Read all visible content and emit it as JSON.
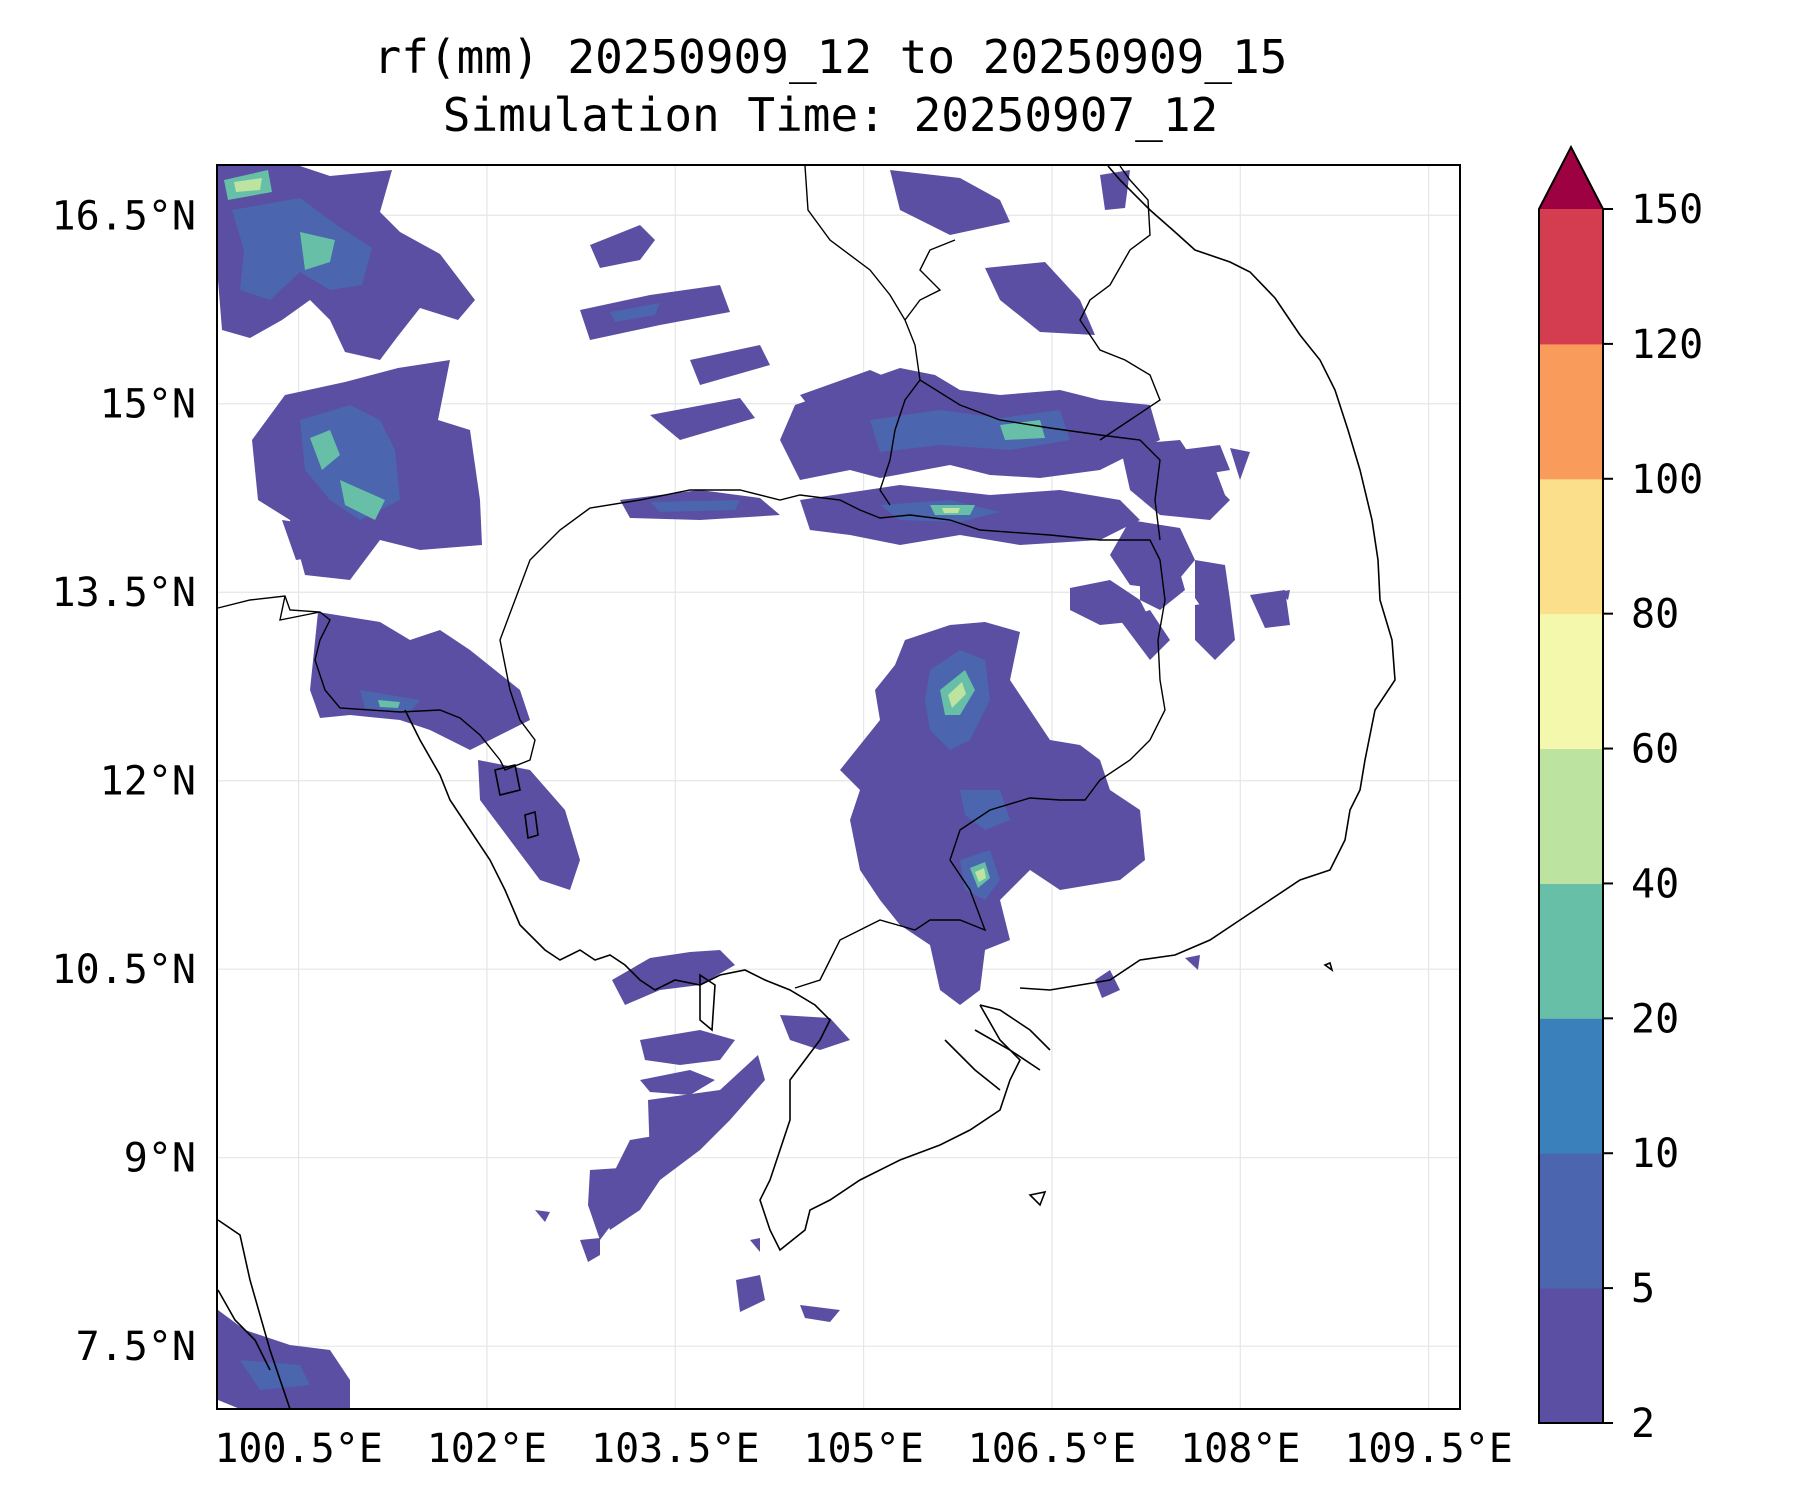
{
  "title": {
    "line1": "rf(mm) 20250909_12 to 20250909_15",
    "line2": "Simulation Time: 20250907_12"
  },
  "map": {
    "lon_range": [
      99.85,
      109.75
    ],
    "lat_range": [
      7.0,
      16.9
    ],
    "lon_ticks": [
      100.5,
      102,
      103.5,
      105,
      106.5,
      108,
      109.5
    ],
    "lon_tick_labels": [
      "100.5°E",
      "102°E",
      "103.5°E",
      "105°E",
      "106.5°E",
      "108°E",
      "109.5°E"
    ],
    "lat_ticks": [
      16.5,
      15,
      13.5,
      12,
      10.5,
      9,
      7.5
    ],
    "lat_tick_labels": [
      "16.5°N",
      "15°N",
      "13.5°N",
      "12°N",
      "10.5°N",
      "9°N",
      "7.5°N"
    ],
    "gridlines": true
  },
  "colorbar": {
    "levels": [
      2,
      5,
      10,
      20,
      40,
      60,
      80,
      100,
      120,
      150
    ],
    "level_labels": [
      "2",
      "5",
      "10",
      "20",
      "40",
      "60",
      "80",
      "100",
      "120",
      "150"
    ],
    "colors": [
      "#5a4fa3",
      "#4b65ae",
      "#3a80bb",
      "#66bfa6",
      "#bde3a1",
      "#f3f8ad",
      "#fbdf8a",
      "#f89b5b",
      "#d43d4f"
    ],
    "extend_color": "#9e0142",
    "extend": "max"
  },
  "colors": {
    "coastline": "#000000",
    "border": "#000000",
    "grid": "#e6e6e6"
  }
}
